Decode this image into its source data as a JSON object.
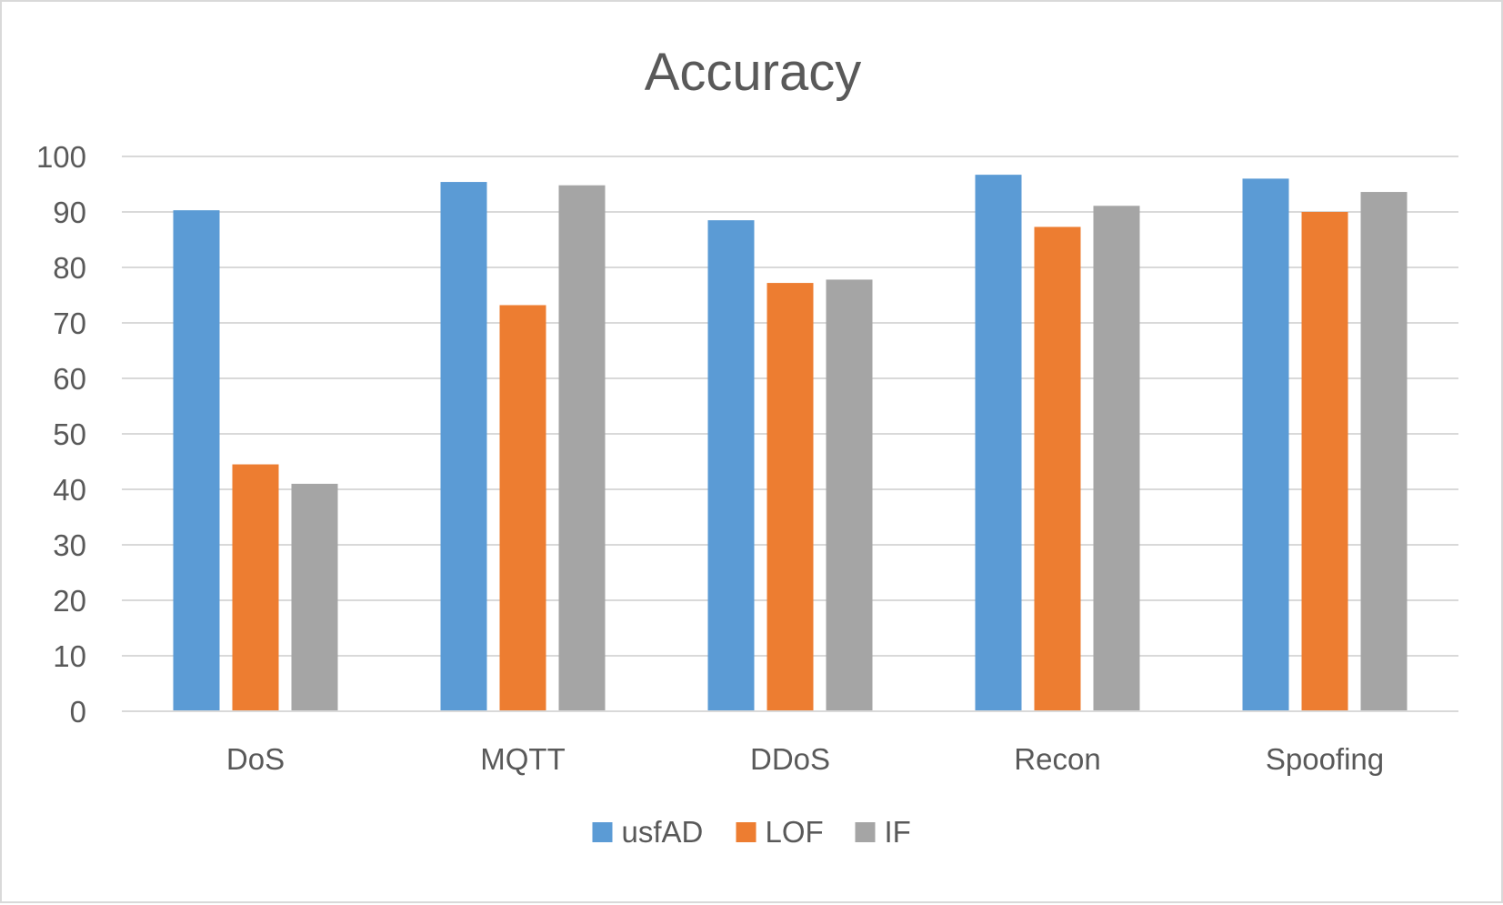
{
  "chart_data": {
    "type": "bar",
    "title": "Accuracy",
    "categories": [
      "DoS",
      "MQTT",
      "DDoS",
      "Recon",
      "Spoofing"
    ],
    "series": [
      {
        "name": "usfAD",
        "color": "#5b9bd5",
        "values": [
          90.3,
          95.4,
          88.5,
          96.7,
          96.0
        ]
      },
      {
        "name": "LOF",
        "color": "#ed7d31",
        "values": [
          44.5,
          73.2,
          77.2,
          87.3,
          90.0
        ]
      },
      {
        "name": "IF",
        "color": "#a5a5a5",
        "values": [
          41.0,
          94.8,
          77.8,
          91.1,
          93.6
        ]
      }
    ],
    "ylim": [
      0,
      100
    ],
    "yticks": [
      0,
      10,
      20,
      30,
      40,
      50,
      60,
      70,
      80,
      90,
      100
    ],
    "grid": true,
    "legend_position": "bottom",
    "xlabel": "",
    "ylabel": ""
  }
}
